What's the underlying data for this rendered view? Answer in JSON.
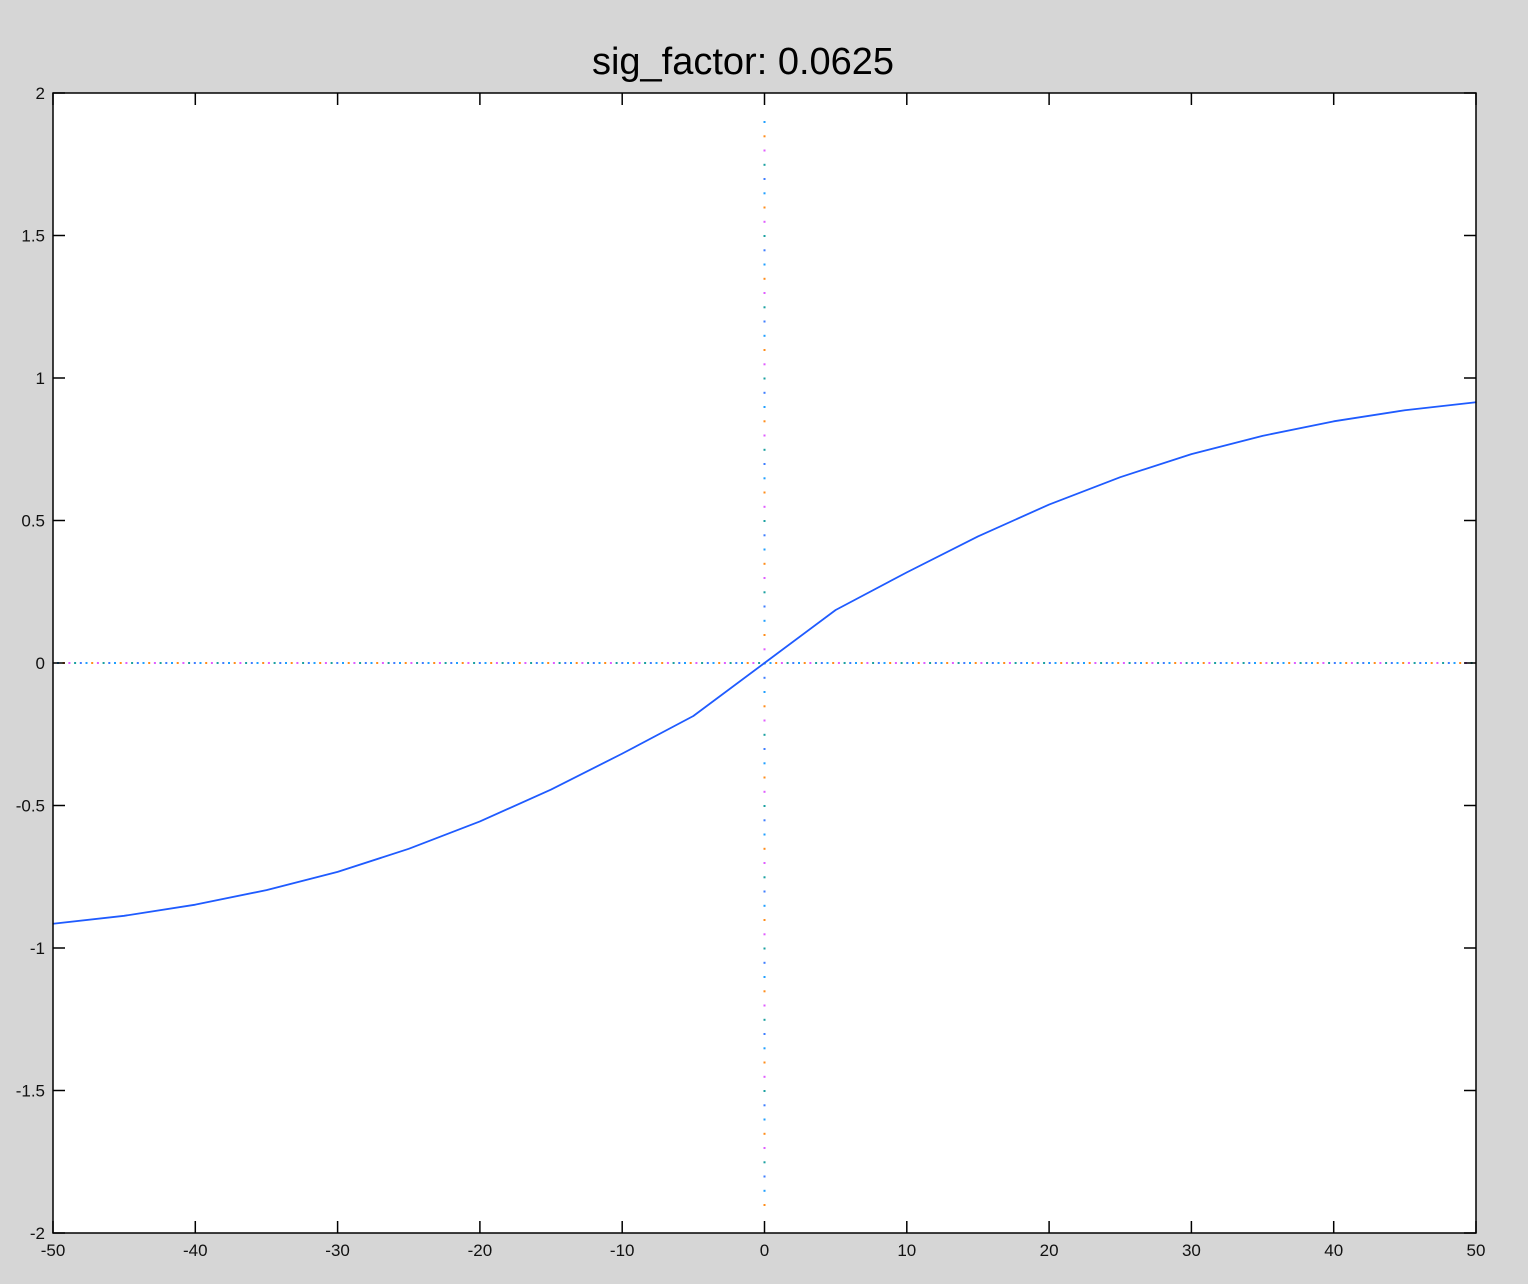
{
  "chart_data": {
    "type": "line",
    "title": "sig_factor: 0.0625",
    "xlabel": "",
    "ylabel": "",
    "xlim": [
      -50,
      50
    ],
    "ylim": [
      -2,
      2
    ],
    "x_ticks": [
      -50,
      -40,
      -30,
      -20,
      -10,
      0,
      10,
      20,
      30,
      40,
      50
    ],
    "y_ticks": [
      -2,
      -1.5,
      -1,
      -0.5,
      0,
      0.5,
      1,
      1.5,
      2
    ],
    "x_tick_labels": [
      "-50",
      "-40",
      "-30",
      "-20",
      "-10",
      "0",
      "10",
      "20",
      "30",
      "40",
      "50"
    ],
    "y_tick_labels": [
      "-2",
      "-1.5",
      "-1",
      "-0.5",
      "0",
      "0.5",
      "1",
      "1.5",
      "2"
    ],
    "grid": false,
    "series": [
      {
        "color": "#1f5bff",
        "x": [
          -50,
          -45,
          -40,
          -35,
          -30,
          -25,
          -20,
          -15,
          -10,
          -5,
          0,
          5,
          10,
          15,
          20,
          25,
          30,
          35,
          40,
          45,
          50
        ],
        "y": [
          -0.915,
          -0.887,
          -0.848,
          -0.797,
          -0.733,
          -0.652,
          -0.556,
          -0.444,
          -0.318,
          -0.186,
          0,
          0.186,
          0.318,
          0.444,
          0.556,
          0.652,
          0.733,
          0.797,
          0.848,
          0.887,
          0.915
        ]
      }
    ],
    "reference_lines": [
      {
        "orientation": "horizontal",
        "value": 0,
        "style": "dotted-multicolor"
      },
      {
        "orientation": "vertical",
        "value": 0,
        "style": "dotted-multicolor"
      }
    ]
  },
  "colors": {
    "figure_background": "#d6d6d6",
    "axes_background": "#ffffff",
    "axes_edge": "#000000",
    "series_line": "#1f5bff",
    "dot_palette": [
      "#1f9fff",
      "#ff8c1a",
      "#e05cff",
      "#1aa0a0",
      "#3d7dff"
    ]
  }
}
